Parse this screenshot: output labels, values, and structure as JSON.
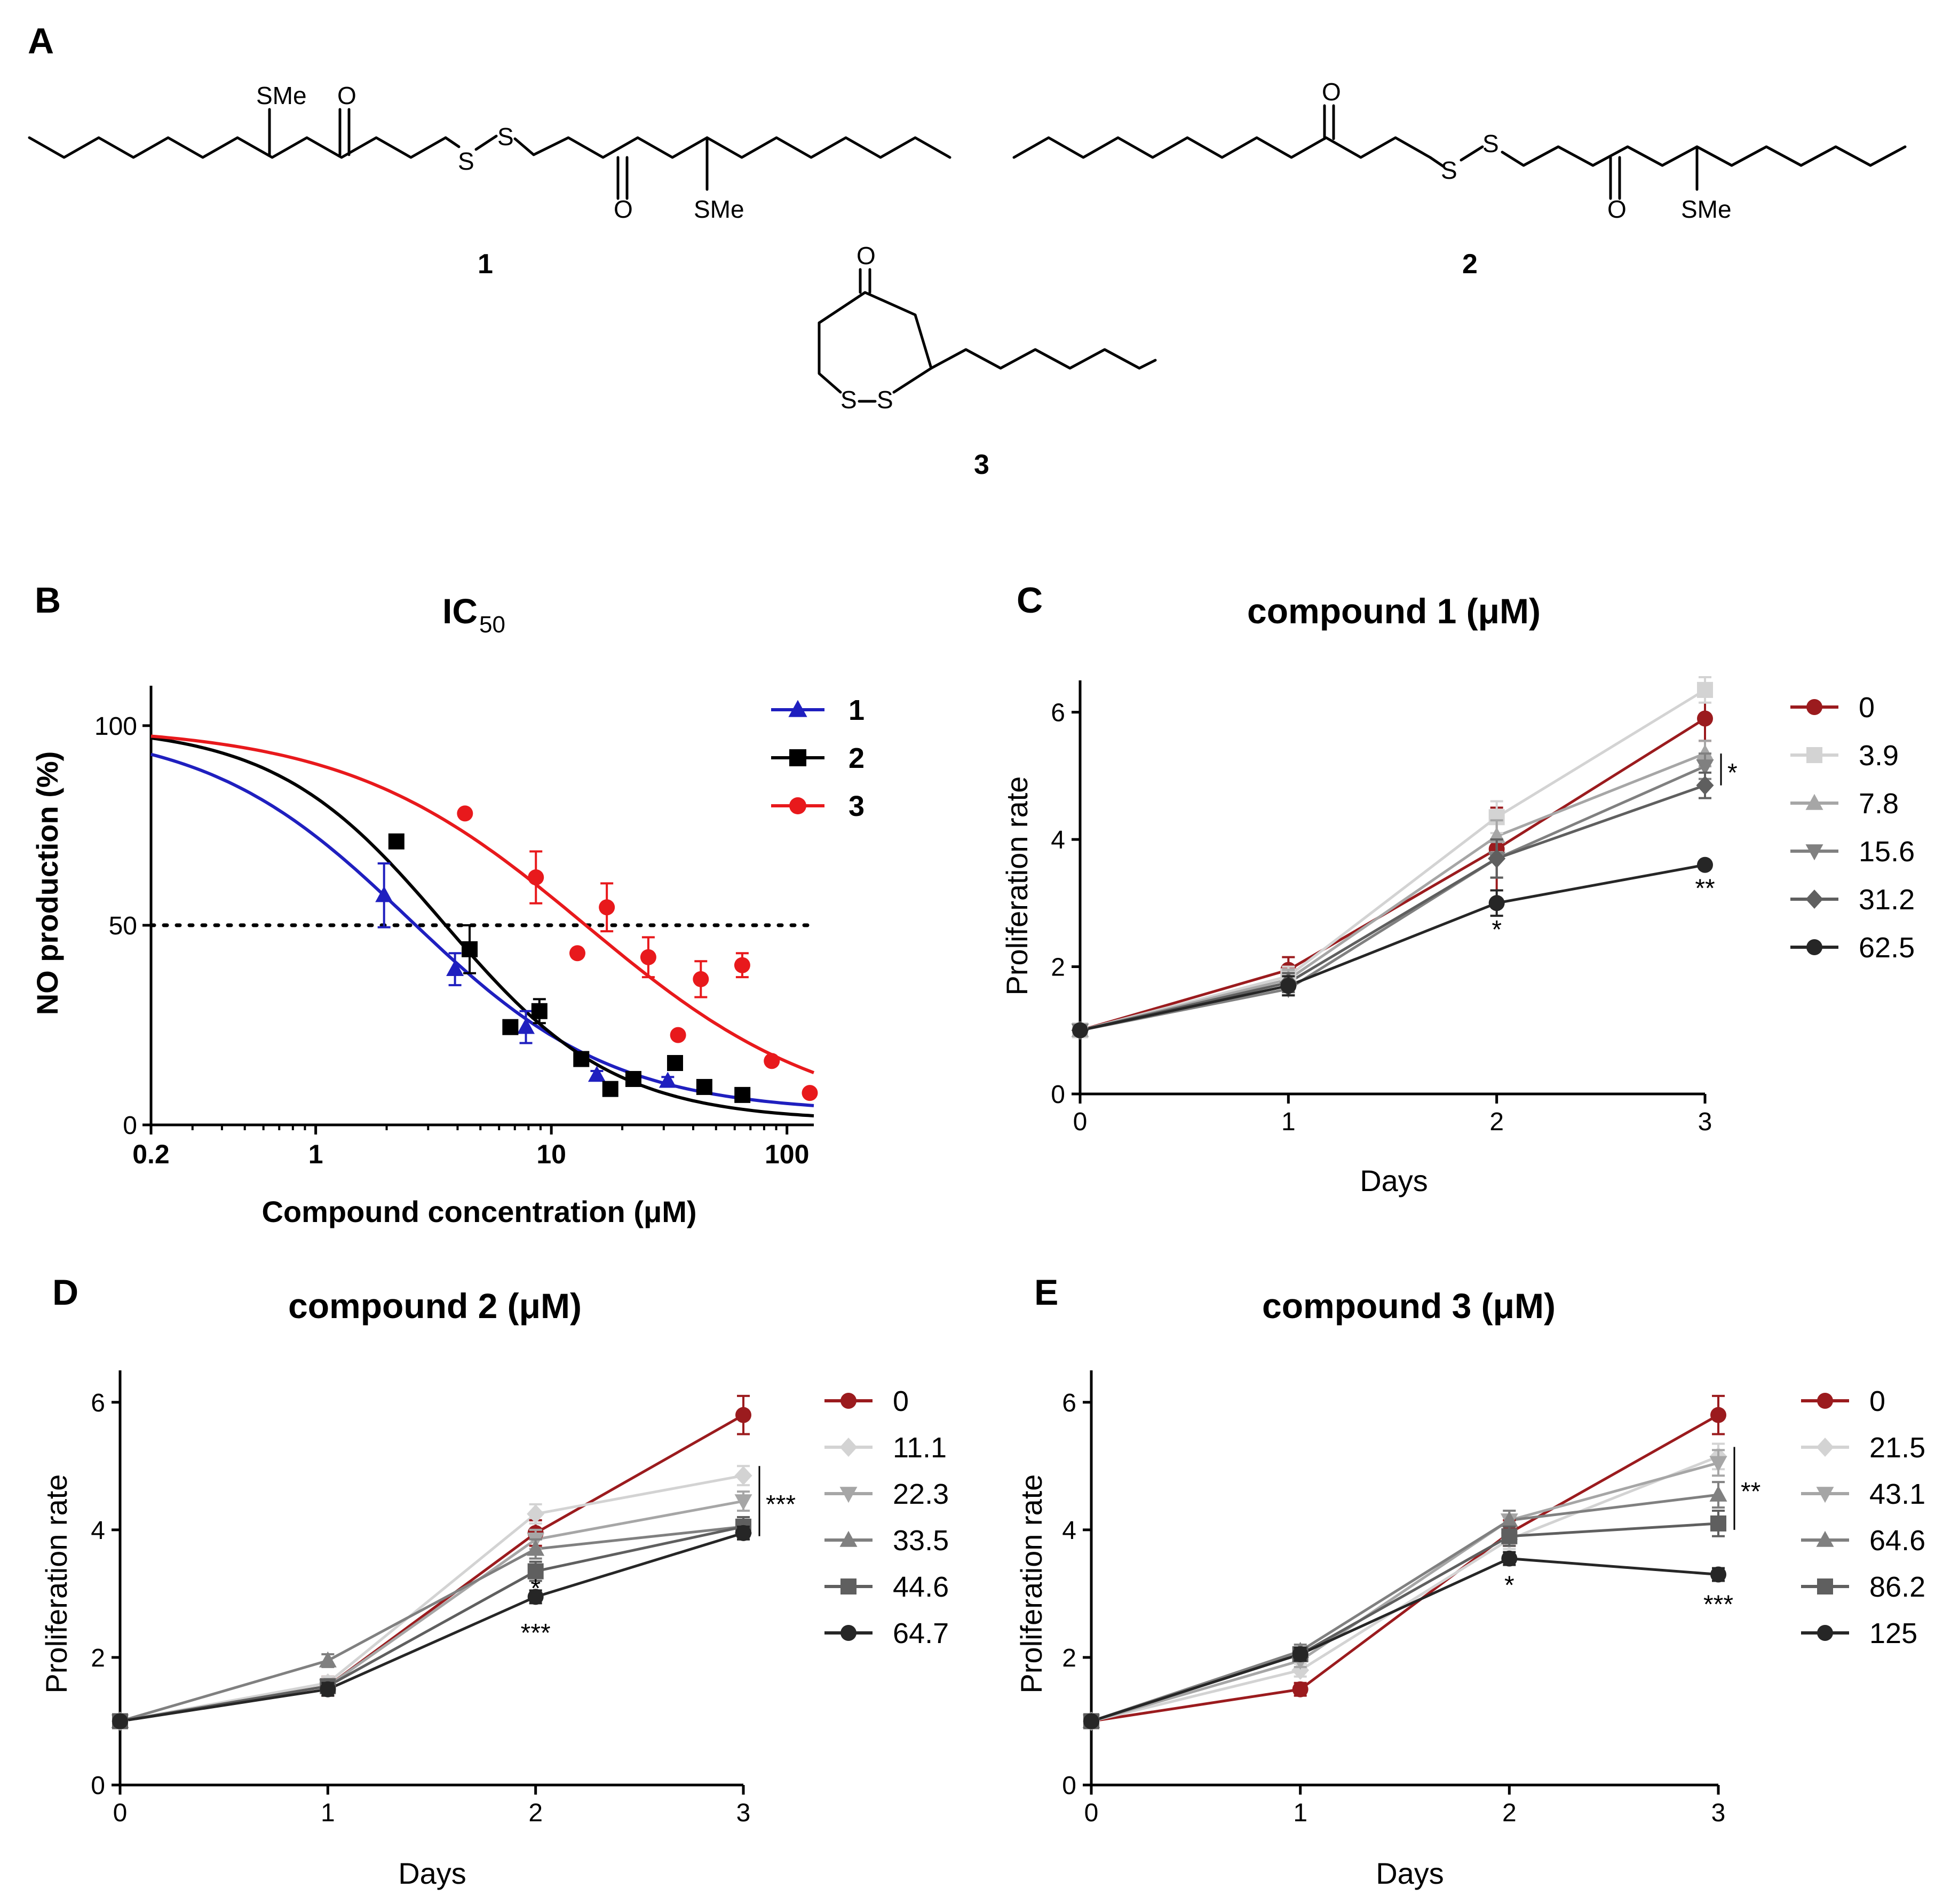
{
  "panel_labels": {
    "A": "A",
    "B": "B",
    "C": "C",
    "D": "D",
    "E": "E"
  },
  "structures": {
    "compound_numbers": [
      "1",
      "2",
      "3"
    ],
    "atoms": {
      "SMe": "SMe",
      "O": "O",
      "S": "S"
    }
  },
  "chart_data": [
    {
      "id": "B",
      "type": "scatter",
      "title": "IC",
      "title_subscript": "50",
      "xlabel": "Compound concentration (μM)",
      "ylabel": "NO production (%)",
      "xscale": "log",
      "xlim": [
        0.2,
        130
      ],
      "ylim": [
        0,
        110
      ],
      "x_ticks": [
        "0.2",
        "1",
        "10",
        "100"
      ],
      "y_ticks": [
        "0",
        "50",
        "100"
      ],
      "reference_line_y": 50,
      "legend": "top-right",
      "series": [
        {
          "name": "1",
          "color": "#1f1fbf",
          "marker": "triangle",
          "points": [
            [
              1.95,
              57.5
            ],
            [
              3.9,
              39
            ],
            [
              7.8,
              24.5
            ],
            [
              15.6,
              12.5
            ],
            [
              31.2,
              11
            ]
          ],
          "errors": [
            8,
            4,
            4,
            1,
            1
          ],
          "fit_ic50": 2.5,
          "fit_top": 100,
          "fit_bottom": 3,
          "fit_hill": 1.0
        },
        {
          "name": "2",
          "color": "#000000",
          "marker": "square",
          "points": [
            [
              2.2,
              71
            ],
            [
              4.5,
              44
            ],
            [
              6.7,
              24.5
            ],
            [
              8.9,
              28.5
            ],
            [
              13.4,
              16.5
            ],
            [
              17.8,
              9
            ],
            [
              22.3,
              11.5
            ],
            [
              33.5,
              15.5
            ],
            [
              44.6,
              9.5
            ],
            [
              64.7,
              7.5
            ]
          ],
          "errors": [
            0,
            6,
            0,
            3,
            0,
            0,
            0,
            0,
            0,
            0
          ],
          "fit_ic50": 3.5,
          "fit_top": 100,
          "fit_bottom": 1,
          "fit_hill": 1.2
        },
        {
          "name": "3",
          "color": "#e8191c",
          "marker": "circle",
          "points": [
            [
              4.3,
              78
            ],
            [
              8.6,
              62
            ],
            [
              12.9,
              43
            ],
            [
              17.2,
              54.5
            ],
            [
              25.8,
              42
            ],
            [
              34.5,
              22.5
            ],
            [
              43.1,
              36.5
            ],
            [
              64.6,
              40
            ],
            [
              86.2,
              16
            ],
            [
              125,
              8
            ]
          ],
          "errors": [
            0,
            6.5,
            0,
            6,
            5,
            0,
            4.5,
            3,
            0,
            0
          ],
          "fit_ic50": 14,
          "fit_top": 100,
          "fit_bottom": 0,
          "fit_hill": 0.85
        }
      ]
    },
    {
      "id": "C",
      "type": "line",
      "title": "compound 1 (μM)",
      "xlabel": "Days",
      "ylabel": "Proliferation rate",
      "x": [
        0,
        1,
        2,
        3
      ],
      "xlim": [
        0,
        3
      ],
      "ylim": [
        0,
        6.5
      ],
      "y_ticks": [
        "0",
        "2",
        "4",
        "6"
      ],
      "legend": "right",
      "series": [
        {
          "name": "0",
          "color": "#9b1b1e",
          "marker": "circle",
          "values": [
            1,
            1.95,
            3.85,
            5.9
          ],
          "errors": [
            0,
            0.2,
            0.65,
            0.35
          ]
        },
        {
          "name": "3.9",
          "color": "#d3d3d3",
          "marker": "square",
          "values": [
            1,
            1.85,
            4.35,
            6.35
          ],
          "errors": [
            0,
            0.15,
            0.25,
            0.2
          ]
        },
        {
          "name": "7.8",
          "color": "#a6a6a6",
          "marker": "triangle",
          "values": [
            1,
            1.8,
            4.05,
            5.35
          ],
          "errors": [
            0,
            0.15,
            0.25,
            0.2
          ]
        },
        {
          "name": "15.6",
          "color": "#808080",
          "marker": "triangle-down",
          "values": [
            1,
            1.65,
            3.7,
            5.15
          ],
          "errors": [
            0,
            0.1,
            0.3,
            0.2
          ]
        },
        {
          "name": "31.2",
          "color": "#5f5f5f",
          "marker": "diamond",
          "values": [
            1,
            1.75,
            3.7,
            4.85
          ],
          "errors": [
            0,
            0.15,
            0.3,
            0.2
          ]
        },
        {
          "name": "62.5",
          "color": "#262626",
          "marker": "circle",
          "values": [
            1,
            1.7,
            3.0,
            3.6
          ],
          "errors": [
            0,
            0.15,
            0.2,
            0.05
          ]
        }
      ],
      "annotations": [
        {
          "text": "*",
          "x": 2,
          "y": 2.6
        },
        {
          "text": "**",
          "x": 3,
          "y": 3.25
        },
        {
          "text": "*",
          "bracket": [
            4.85,
            5.35
          ],
          "x": 3
        }
      ]
    },
    {
      "id": "D",
      "type": "line",
      "title": "compound 2 (μM)",
      "xlabel": "Days",
      "ylabel": "Proliferation rate",
      "x": [
        0,
        1,
        2,
        3
      ],
      "xlim": [
        0,
        3
      ],
      "ylim": [
        0,
        6.5
      ],
      "y_ticks": [
        "0",
        "2",
        "4",
        "6"
      ],
      "legend": "right",
      "series": [
        {
          "name": "0",
          "color": "#9b1b1e",
          "marker": "circle",
          "values": [
            1,
            1.55,
            3.95,
            5.8
          ],
          "errors": [
            0,
            0.15,
            0.2,
            0.3
          ]
        },
        {
          "name": "11.1",
          "color": "#d3d3d3",
          "marker": "diamond",
          "values": [
            1,
            1.6,
            4.25,
            4.85
          ],
          "errors": [
            0,
            0.1,
            0.15,
            0.15
          ]
        },
        {
          "name": "22.3",
          "color": "#a6a6a6",
          "marker": "triangle-down",
          "values": [
            1,
            1.55,
            3.85,
            4.45
          ],
          "errors": [
            0,
            0.1,
            0.15,
            0.15
          ]
        },
        {
          "name": "33.5",
          "color": "#808080",
          "marker": "triangle",
          "values": [
            1,
            1.95,
            3.7,
            4.05
          ],
          "errors": [
            0,
            0.1,
            0.15,
            0.1
          ]
        },
        {
          "name": "44.6",
          "color": "#5f5f5f",
          "marker": "square",
          "values": [
            1,
            1.55,
            3.35,
            4.05
          ],
          "errors": [
            0,
            0.1,
            0.15,
            0.15
          ]
        },
        {
          "name": "64.7",
          "color": "#262626",
          "marker": "circle",
          "values": [
            1,
            1.5,
            2.95,
            3.95
          ],
          "errors": [
            0,
            0.1,
            0.1,
            0.1
          ]
        }
      ],
      "annotations": [
        {
          "text": "*",
          "x": 2,
          "y": 3.1
        },
        {
          "text": "***",
          "x": 2,
          "y": 2.4
        },
        {
          "text": "***",
          "bracket": [
            3.9,
            5.0
          ],
          "x": 3
        }
      ]
    },
    {
      "id": "E",
      "type": "line",
      "title": "compound 3 (μM)",
      "xlabel": "Days",
      "ylabel": "Proliferation rate",
      "x": [
        0,
        1,
        2,
        3
      ],
      "xlim": [
        0,
        3
      ],
      "ylim": [
        0,
        6.5
      ],
      "y_ticks": [
        "0",
        "2",
        "4",
        "6"
      ],
      "legend": "right",
      "series": [
        {
          "name": "0",
          "color": "#9b1b1e",
          "marker": "circle",
          "values": [
            1,
            1.5,
            3.95,
            5.8
          ],
          "errors": [
            0,
            0.1,
            0.2,
            0.3
          ]
        },
        {
          "name": "21.5",
          "color": "#d3d3d3",
          "marker": "diamond",
          "values": [
            1,
            1.8,
            3.85,
            5.15
          ],
          "errors": [
            0,
            0.1,
            0.15,
            0.2
          ]
        },
        {
          "name": "43.1",
          "color": "#a6a6a6",
          "marker": "triangle-down",
          "values": [
            1,
            1.95,
            4.15,
            5.05
          ],
          "errors": [
            0,
            0.1,
            0.15,
            0.2
          ]
        },
        {
          "name": "64.6",
          "color": "#808080",
          "marker": "triangle",
          "values": [
            1,
            2.1,
            4.15,
            4.55
          ],
          "errors": [
            0,
            0.1,
            0.15,
            0.2
          ]
        },
        {
          "name": "86.2",
          "color": "#5f5f5f",
          "marker": "square",
          "values": [
            1,
            2.05,
            3.9,
            4.1
          ],
          "errors": [
            0,
            0.1,
            0.15,
            0.2
          ]
        },
        {
          "name": "125",
          "color": "#262626",
          "marker": "circle",
          "values": [
            1,
            2.05,
            3.55,
            3.3
          ],
          "errors": [
            0,
            0.1,
            0.1,
            0.1
          ]
        }
      ],
      "annotations": [
        {
          "text": "*",
          "x": 2,
          "y": 3.15
        },
        {
          "text": "***",
          "x": 3,
          "y": 2.85
        },
        {
          "text": "**",
          "bracket": [
            4.0,
            5.3
          ],
          "x": 3
        }
      ]
    }
  ]
}
